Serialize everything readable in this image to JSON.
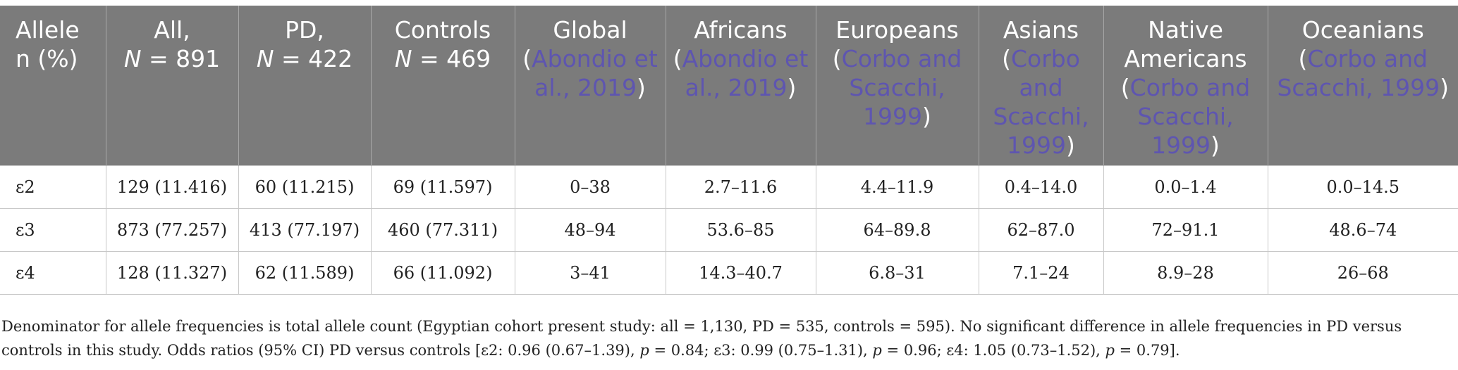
{
  "table": {
    "headers": [
      {
        "l1": "Allele",
        "l2": "n (%)"
      },
      {
        "l1": "All,",
        "l2_italic": "N",
        "l2_rest": " = 891"
      },
      {
        "l1": "PD,",
        "l2_italic": "N",
        "l2_rest": " = 422"
      },
      {
        "l1": "Controls",
        "l2_italic": "N",
        "l2_rest": " = 469"
      },
      {
        "label": "Global",
        "ref": "Abondio et al., 2019"
      },
      {
        "label": "Africans",
        "ref": "Abondio et al., 2019"
      },
      {
        "label": "Europeans",
        "ref": "Corbo and Scacchi, 1999"
      },
      {
        "label": "Asians",
        "ref": "Corbo and Scacchi, 1999"
      },
      {
        "label": "Native Americans",
        "ref": "Corbo and Scacchi, 1999"
      },
      {
        "label": "Oceanians",
        "ref": "Corbo and Scacchi, 1999"
      }
    ],
    "rows": [
      [
        "ε2",
        "129 (11.416)",
        "60 (11.215)",
        "69 (11.597)",
        "0–38",
        "2.7–11.6",
        "4.4–11.9",
        "0.4–14.0",
        "0.0–1.4",
        "0.0–14.5"
      ],
      [
        "ε3",
        "873 (77.257)",
        "413 (77.197)",
        "460 (77.311)",
        "48–94",
        "53.6–85",
        "64–89.8",
        "62–87.0",
        "72–91.1",
        "48.6–74"
      ],
      [
        "ε4",
        "128 (11.327)",
        "62 (11.589)",
        "66 (11.092)",
        "3–41",
        "14.3–40.7",
        "6.8–31",
        "7.1–24",
        "8.9–28",
        "26–68"
      ]
    ]
  },
  "footnote": {
    "line1": "Denominator for allele frequencies is total allele count (Egyptian cohort present study: all = 1,130, PD = 535, controls = 595). No significant difference in allele frequencies in PD versus",
    "line2_a": "controls in this study. Odds ratios (95% CI) PD versus controls [ε2: 0.96 (0.67–1.39), ",
    "p": "p",
    "line2_b": " = 0.84; ε3: 0.99 (0.75–1.31), ",
    "line2_c": " = 0.96; ε4: 1.05 (0.73–1.52), ",
    "line2_d": " = 0.79]."
  },
  "colors": {
    "header_bg": "#7b7b7b",
    "header_text": "#ffffff",
    "reference_link": "#5e55b0",
    "border": "#c8c8c8"
  }
}
